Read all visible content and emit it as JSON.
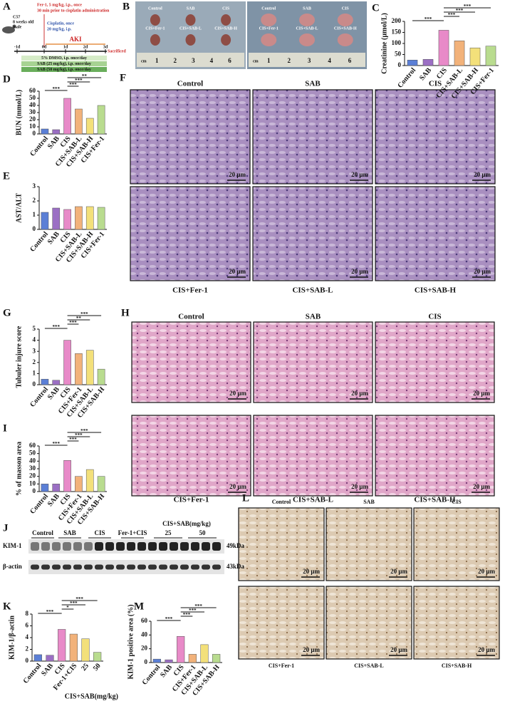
{
  "scheme": {
    "panel": "A",
    "mouse": [
      "C57",
      "8 weeks old",
      "male"
    ],
    "fer1": [
      "Fer-1, 5 mg/kg, i.p., once",
      "30 min prior to cisplatin administration"
    ],
    "cisplatin": [
      "Cisplatin, once",
      "20 mg/kg, i.p."
    ],
    "aki": "AKI",
    "days": [
      "-1d",
      "0d",
      "1d",
      "2d",
      "3d"
    ],
    "end": "Sacrificed",
    "treatments": [
      "5% DMSO, i.p. once/day",
      "SAB (25 mg/kg), i.p. once/day",
      "SAB (50 mg/kg), i.p. once/day"
    ]
  },
  "kidney_photo": {
    "panel": "B",
    "labels": [
      "Control",
      "SAB",
      "CIS",
      "CIS+Fer-1",
      "CIS+SAB-L",
      "CIS+SAB-H"
    ],
    "unit": "cm",
    "ruler": [
      "1",
      "2",
      "3",
      "4",
      "6"
    ]
  },
  "staining": {
    "F": {
      "panel": "F",
      "labels": [
        "Control",
        "SAB",
        "CIS",
        "CIS+Fer-1",
        "CIS+SAB-L",
        "CIS+SAB-H"
      ],
      "scale_bar": "20 μm"
    },
    "H": {
      "panel": "H",
      "labels": [
        "Control",
        "SAB",
        "CIS",
        "CIS+Fer-1",
        "CIS+SAB-L",
        "CIS+SAB-H"
      ],
      "scale_bar": "20 μm"
    },
    "L": {
      "panel": "L",
      "labels": [
        "Control",
        "SAB",
        "CIS",
        "CIS+Fer-1",
        "CIS+SAB-L",
        "CIS+SAB-H"
      ],
      "scale_bar": "20 μm"
    }
  },
  "western_blot": {
    "panel": "J",
    "lanes": [
      "Control",
      "SAB",
      "CIS",
      "Fer-1+CIS"
    ],
    "group": "CIS+SAB(mg/kg)",
    "doses": [
      "25",
      "50"
    ],
    "proteins": [
      "KIM-1",
      "β-actin"
    ],
    "sizes": [
      "49kDa",
      "43kDa"
    ]
  },
  "chart_data": [
    {
      "type": "bar",
      "panel": "C",
      "y_label": "Creatinine (μmol/L)",
      "categories": [
        "Control",
        "SAB",
        "CIS",
        "CIS+SAB-L",
        "CIS+SAB-H",
        "CIS+Fer-1"
      ],
      "values": [
        25,
        28,
        160,
        112,
        80,
        88
      ],
      "colors": [
        "#5b7fd6",
        "#9b6fc4",
        "#e88ac8",
        "#f2b27a",
        "#f3e07a",
        "#b9dc8f"
      ],
      "ylim": [
        0,
        200
      ],
      "yticks": [
        0,
        50,
        100,
        150,
        200
      ],
      "brackets": [
        {
          "between": [
            "Control",
            "CIS"
          ],
          "label": "***"
        },
        {
          "between": [
            "CIS",
            "CIS+SAB-L"
          ],
          "label": "***"
        },
        {
          "between": [
            "CIS",
            "CIS+SAB-H"
          ],
          "label": "***"
        },
        {
          "between": [
            "CIS",
            "CIS+Fer-1"
          ],
          "label": "***"
        }
      ]
    },
    {
      "type": "bar",
      "panel": "D",
      "y_label": "BUN (mmol/L)",
      "categories": [
        "Control",
        "SAB",
        "CIS",
        "CIS+SAB-L",
        "CIS+SAB-H",
        "CIS+Fer-1"
      ],
      "values": [
        7,
        6,
        50,
        35,
        22,
        40
      ],
      "colors": [
        "#5b7fd6",
        "#9b6fc4",
        "#e88ac8",
        "#f2b27a",
        "#f3e07a",
        "#b9dc8f"
      ],
      "ylim": [
        0,
        60
      ],
      "yticks": [
        0,
        10,
        20,
        30,
        40,
        50,
        60
      ],
      "brackets": [
        {
          "between": [
            "Control",
            "CIS"
          ],
          "label": "***"
        },
        {
          "between": [
            "CIS",
            "CIS+SAB-L"
          ],
          "label": "***"
        },
        {
          "between": [
            "CIS",
            "CIS+SAB-H"
          ],
          "label": "***"
        },
        {
          "between": [
            "CIS",
            "CIS+Fer-1"
          ],
          "label": "**"
        }
      ]
    },
    {
      "type": "bar",
      "panel": "E",
      "y_label": "AST/ALT",
      "categories": [
        "Control",
        "SAB",
        "CIS",
        "CIS+SAB-L",
        "CIS+SAB-H",
        "CIS+Fer-1"
      ],
      "values": [
        1.2,
        1.5,
        1.4,
        1.6,
        1.6,
        1.55
      ],
      "colors": [
        "#5b7fd6",
        "#9b6fc4",
        "#e88ac8",
        "#f2b27a",
        "#f3e07a",
        "#b9dc8f"
      ],
      "ylim": [
        0,
        3
      ],
      "yticks": [
        0,
        1,
        2,
        3
      ]
    },
    {
      "type": "bar",
      "panel": "G",
      "y_label": "Tubuler injure score",
      "categories": [
        "Control",
        "SAB",
        "CIS",
        "CIS+Fer-1",
        "CIS+SAB-L",
        "CIS+SAB-H"
      ],
      "values": [
        0.5,
        0.4,
        4,
        2.8,
        3.1,
        1.4
      ],
      "colors": [
        "#5b7fd6",
        "#9b6fc4",
        "#e88ac8",
        "#f2b27a",
        "#f3e07a",
        "#b9dc8f"
      ],
      "ylim": [
        0,
        5
      ],
      "yticks": [
        0,
        1,
        2,
        3,
        4,
        5
      ],
      "brackets": [
        {
          "between": [
            "Control",
            "CIS"
          ],
          "label": "***"
        },
        {
          "between": [
            "CIS",
            "CIS+Fer-1"
          ],
          "label": "***"
        },
        {
          "between": [
            "CIS",
            "CIS+SAB-L"
          ],
          "label": "**"
        },
        {
          "between": [
            "CIS",
            "CIS+SAB-H"
          ],
          "label": "***"
        }
      ]
    },
    {
      "type": "bar",
      "panel": "I",
      "y_label": "% of masson area",
      "categories": [
        "Control",
        "SAB",
        "CIS",
        "CIS+Fer-1",
        "CIS+SAB-L",
        "CIS+SAB-H"
      ],
      "values": [
        10,
        10,
        41,
        20,
        29,
        20
      ],
      "colors": [
        "#5b7fd6",
        "#9b6fc4",
        "#e88ac8",
        "#f2b27a",
        "#f3e07a",
        "#b9dc8f"
      ],
      "ylim": [
        0,
        60
      ],
      "yticks": [
        0,
        10,
        20,
        30,
        40,
        50,
        60
      ],
      "brackets": [
        {
          "between": [
            "Control",
            "CIS"
          ],
          "label": "***"
        },
        {
          "between": [
            "CIS",
            "CIS+Fer-1"
          ],
          "label": "***"
        },
        {
          "between": [
            "CIS",
            "CIS+SAB-L"
          ],
          "label": "***"
        },
        {
          "between": [
            "CIS",
            "CIS+SAB-H"
          ],
          "label": "***"
        }
      ]
    },
    {
      "type": "bar",
      "panel": "K",
      "y_label": "KIM-1/β-actin",
      "categories": [
        "Control",
        "SAB",
        "CIS",
        "Fer-1+CIS",
        "25",
        "50"
      ],
      "group_label": "CIS+SAB(mg/kg)",
      "values": [
        1.1,
        1.0,
        5.4,
        4.6,
        3.8,
        1.5
      ],
      "colors": [
        "#5b7fd6",
        "#9b6fc4",
        "#e88ac8",
        "#f2b27a",
        "#f3e07a",
        "#b9dc8f"
      ],
      "ylim": [
        0,
        8
      ],
      "yticks": [
        0,
        2,
        4,
        6,
        8
      ],
      "brackets": [
        {
          "between": [
            "Control",
            "CIS"
          ],
          "label": "***"
        },
        {
          "between": [
            "CIS",
            "Fer-1+CIS"
          ],
          "label": "*"
        },
        {
          "between": [
            "CIS",
            "25"
          ],
          "label": "***"
        },
        {
          "between": [
            "CIS",
            "50"
          ],
          "label": "***"
        }
      ]
    },
    {
      "type": "bar",
      "panel": "M",
      "y_label": "KIM-1 positive area (%)",
      "categories": [
        "Control",
        "SAB",
        "CIS",
        "CIS+Fer-1",
        "CIS+SAB-L",
        "CIS+SAB-H"
      ],
      "values": [
        5,
        4,
        38,
        12,
        26,
        12
      ],
      "colors": [
        "#5b7fd6",
        "#9b6fc4",
        "#e88ac8",
        "#f2b27a",
        "#f3e07a",
        "#b9dc8f"
      ],
      "ylim": [
        0,
        60
      ],
      "yticks": [
        0,
        20,
        40,
        60
      ],
      "brackets": [
        {
          "between": [
            "Control",
            "CIS"
          ],
          "label": "***"
        },
        {
          "between": [
            "CIS",
            "CIS+Fer-1"
          ],
          "label": "***"
        },
        {
          "between": [
            "CIS",
            "CIS+SAB-L"
          ],
          "label": "***"
        },
        {
          "between": [
            "CIS",
            "CIS+SAB-H"
          ],
          "label": "***"
        }
      ]
    }
  ]
}
